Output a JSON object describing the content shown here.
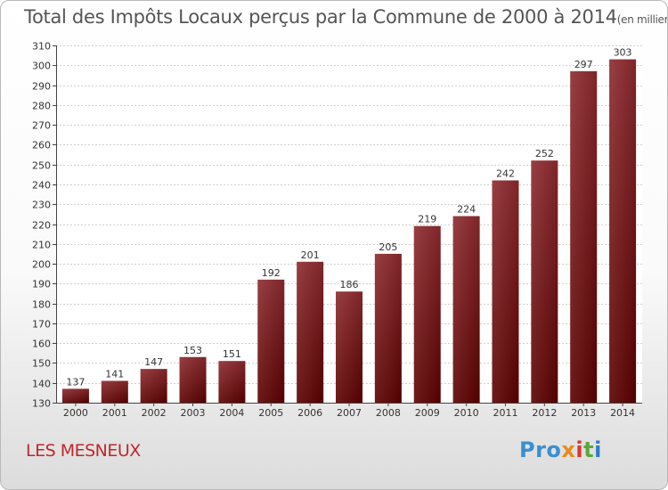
{
  "chart_data": {
    "type": "bar",
    "title": "Total des Impôts Locaux perçus par la Commune de 2000 à 2014",
    "subtitle": "(en milliers d'€)",
    "categories": [
      "2000",
      "2001",
      "2002",
      "2003",
      "2004",
      "2005",
      "2006",
      "2007",
      "2008",
      "2009",
      "2010",
      "2011",
      "2012",
      "2013",
      "2014"
    ],
    "values": [
      137,
      141,
      147,
      153,
      151,
      192,
      201,
      186,
      205,
      219,
      224,
      242,
      252,
      297,
      303
    ],
    "ylim": [
      130,
      310
    ],
    "yticks": [
      130,
      140,
      150,
      160,
      170,
      180,
      190,
      200,
      210,
      220,
      230,
      240,
      250,
      260,
      270,
      280,
      290,
      300,
      310
    ],
    "grid": true,
    "bar_color": "#8a1e22",
    "xlabel": "",
    "ylabel": ""
  },
  "footer": {
    "commune": "LES MESNEUX",
    "logo": {
      "p1": "Pro",
      "p2": "x",
      "p3": "i",
      "p4": "t",
      "p5": "i"
    }
  }
}
